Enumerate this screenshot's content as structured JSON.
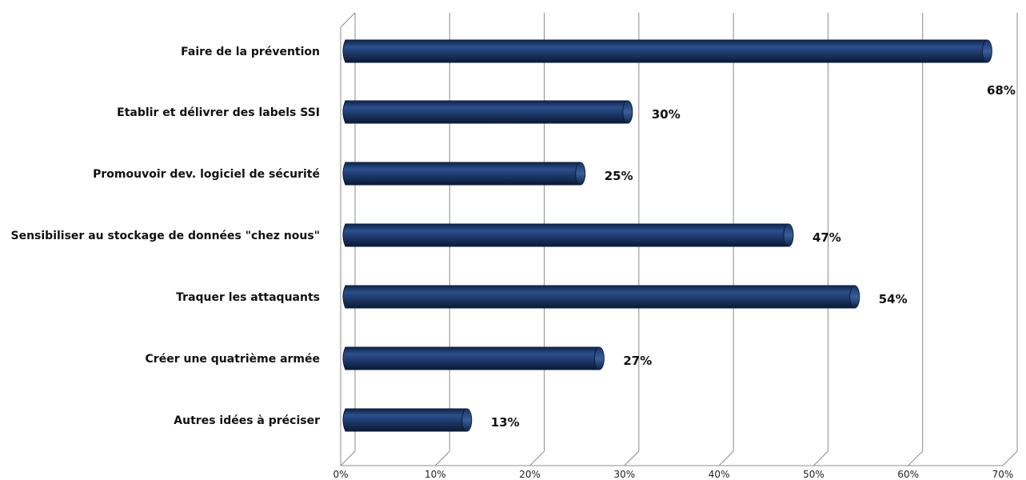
{
  "chart_data": {
    "type": "bar",
    "orientation": "horizontal",
    "title": "",
    "xlabel": "",
    "ylabel": "",
    "categories": [
      "Faire de la prévention",
      "Etablir et délivrer des labels SSI",
      "Promouvoir dev. logiciel de sécurité",
      "Sensibiliser au stockage de données \"chez nous\"",
      "Traquer les  attaquants",
      "Créer une quatrième armée",
      "Autres idées à préciser"
    ],
    "values": [
      68,
      30,
      25,
      47,
      54,
      27,
      13
    ],
    "value_labels": [
      "68%",
      "30%",
      "25%",
      "47%",
      "54%",
      "27%",
      "13%"
    ],
    "xlim": [
      0,
      70
    ],
    "x_ticks": [
      0,
      10,
      20,
      30,
      40,
      50,
      60,
      70
    ],
    "x_tick_labels": [
      "0%",
      "10%",
      "20%",
      "30%",
      "40%",
      "50%",
      "60%",
      "70%"
    ],
    "grid": true,
    "legend": "none",
    "colors": {
      "bar_main": "#1f3b6e",
      "bar_dark": "#0c1d3d",
      "bar_light": "#3a5d99",
      "grid": "#8c8c8c"
    }
  }
}
